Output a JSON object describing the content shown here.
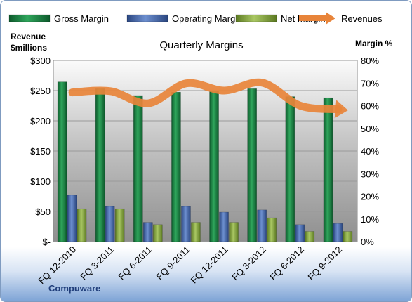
{
  "chart_data": {
    "type": "bar",
    "title": "Quarterly Margins",
    "company": "Compuware",
    "ylabel_left": "Revenue $millions",
    "ylabel_right": "Margin %",
    "categories": [
      "FQ 12-2010",
      "FQ 3-2011",
      "FQ 6-2011",
      "FQ 9-2011",
      "FQ 12-2011",
      "FQ 3-2012",
      "FQ 6-2012",
      "FQ 9-2012"
    ],
    "left_axis": {
      "ylim": [
        0,
        300
      ],
      "ticks": [
        "$-",
        "$50",
        "$100",
        "$150",
        "$200",
        "$250",
        "$300"
      ],
      "tick_values": [
        0,
        50,
        100,
        150,
        200,
        250,
        300
      ]
    },
    "right_axis": {
      "ylim": [
        0,
        80
      ],
      "ticks": [
        "0%",
        "10%",
        "20%",
        "30%",
        "40%",
        "50%",
        "60%",
        "70%",
        "80%"
      ],
      "tick_values": [
        0,
        10,
        20,
        30,
        40,
        50,
        60,
        70,
        80
      ]
    },
    "series": [
      {
        "name": "Gross Margin",
        "kind": "bar",
        "axis": "right",
        "color": "#1e8a4a",
        "values": [
          70.5,
          67.5,
          64.5,
          66,
          66.5,
          67.5,
          64,
          63.5
        ]
      },
      {
        "name": "Operating Margin",
        "kind": "bar",
        "axis": "right",
        "color": "#4a6fb5",
        "values": [
          20.5,
          15.5,
          8.5,
          15.5,
          13,
          14,
          7.5,
          8
        ]
      },
      {
        "name": "Net Margin",
        "kind": "bar",
        "axis": "right",
        "color": "#8fb04a",
        "values": [
          14.5,
          14.5,
          7.5,
          8.5,
          8.5,
          10.5,
          4.5,
          4.5
        ]
      },
      {
        "name": "Revenues",
        "kind": "line",
        "axis": "left",
        "color": "#e8843a",
        "values": [
          247,
          249,
          229,
          262,
          250,
          263,
          225,
          219
        ]
      }
    ],
    "legend": {
      "position": "top",
      "entries": [
        "Gross Margin",
        "Operating Margin",
        "Net Margin",
        "Revenues"
      ]
    },
    "grid": true
  }
}
